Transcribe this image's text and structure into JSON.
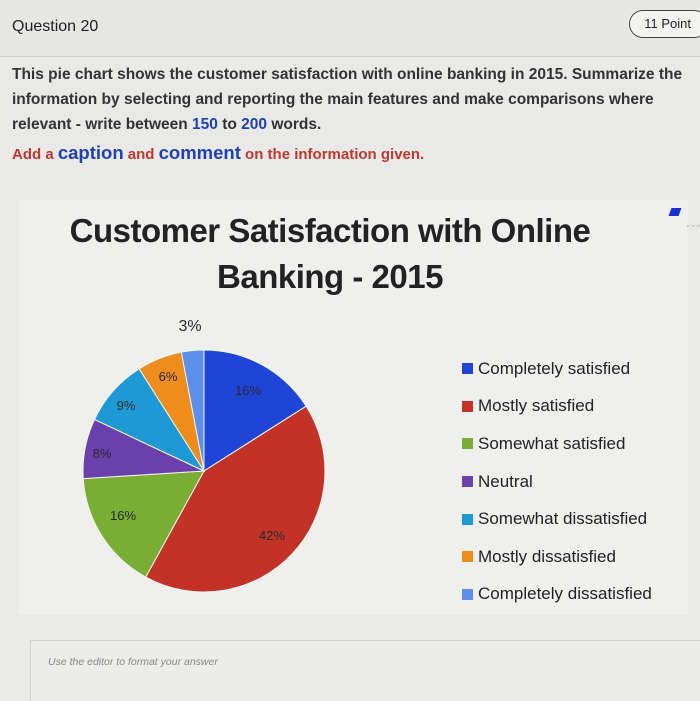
{
  "question": {
    "title": "Question 20",
    "points": "11 Point"
  },
  "prompt": {
    "line1": "This pie chart shows the customer satisfaction with online banking in 2015. Summarize the",
    "line2": "information by selecting and reporting the main features and make comparisons where",
    "line3_before": "relevant - write between ",
    "min_words": "150",
    "to_text": " to ",
    "max_words": "200",
    "line3_after": " words."
  },
  "instruction": {
    "part1": "Add a ",
    "caption_word": "caption",
    "part2": " and ",
    "comment_word": "comment",
    "part3": " on the information given."
  },
  "editor": {
    "hint": "Use the editor to format your answer"
  },
  "colors": {
    "completely_satisfied": "#1f45d6",
    "mostly_satisfied": "#c23226",
    "somewhat_satisfied": "#79ad34",
    "neutral": "#6a40ad",
    "somewhat_dissatisfied": "#1d9ad3",
    "mostly_dissatisfied": "#ee8d1c",
    "completely_dissatisfied": "#5b8fe8"
  },
  "icons": [
    "more-icon"
  ],
  "chart_data": {
    "type": "pie",
    "title_line1": "Customer Satisfaction with Online",
    "title_line2": "Banking - 2015",
    "categories": [
      "Completely satisfied",
      "Mostly satisfied",
      "Somewhat satisfied",
      "Neutral",
      "Somewhat dissatisfied",
      "Mostly dissatisfied",
      "Completely dissatisfied"
    ],
    "values": [
      16,
      42,
      16,
      8,
      9,
      6,
      3
    ],
    "value_labels": [
      "16%",
      "42%",
      "16%",
      "8%",
      "9%",
      "6%",
      "3%"
    ],
    "colors": [
      "#1f45d6",
      "#c23226",
      "#79ad34",
      "#6a40ad",
      "#1d9ad3",
      "#ee8d1c",
      "#5b8fe8"
    ],
    "legend_position": "right"
  }
}
